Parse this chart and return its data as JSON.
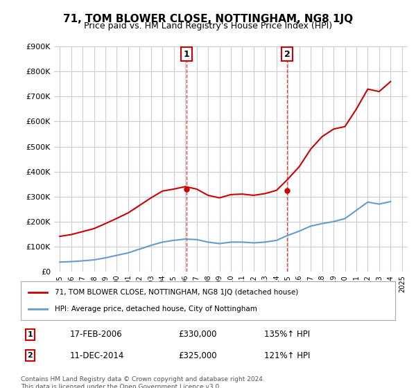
{
  "title": "71, TOM BLOWER CLOSE, NOTTINGHAM, NG8 1JQ",
  "subtitle": "Price paid vs. HM Land Registry's House Price Index (HPI)",
  "sale1": {
    "date": "2006-02-17",
    "price": 330000,
    "label": "1",
    "hpi_pct": "135%↑ HPI",
    "display": "17-FEB-2006",
    "price_str": "£330,000"
  },
  "sale2": {
    "date": "2014-12-11",
    "price": 325000,
    "label": "2",
    "hpi_pct": "121%↑ HPI",
    "display": "11-DEC-2014",
    "price_str": "£325,000"
  },
  "legend_line1": "71, TOM BLOWER CLOSE, NOTTINGHAM, NG8 1JQ (detached house)",
  "legend_line2": "HPI: Average price, detached house, City of Nottingham",
  "footnote": "Contains HM Land Registry data © Crown copyright and database right 2024.\nThis data is licensed under the Open Government Licence v3.0.",
  "red_line_color": "#cc0000",
  "blue_line_color": "#6699cc",
  "dashed_color": "#cc0000",
  "background_color": "#ffffff",
  "grid_color": "#cccccc",
  "ylim": [
    0,
    900000
  ],
  "yticks": [
    0,
    100000,
    200000,
    300000,
    400000,
    500000,
    600000,
    700000,
    800000,
    900000
  ],
  "xlim_start": 1994.5,
  "xlim_end": 2025.5,
  "red_hpi_data": {
    "years": [
      1995,
      1996,
      1997,
      1998,
      1999,
      2000,
      2001,
      2002,
      2003,
      2004,
      2005,
      2006,
      2007,
      2008,
      2009,
      2010,
      2011,
      2012,
      2013,
      2014,
      2015,
      2016,
      2017,
      2018,
      2019,
      2020,
      2021,
      2022,
      2023,
      2024
    ],
    "values": [
      141000,
      148000,
      160000,
      172000,
      192000,
      213000,
      235000,
      265000,
      295000,
      322000,
      330000,
      340000,
      330000,
      305000,
      295000,
      308000,
      310000,
      305000,
      312000,
      325000,
      370000,
      420000,
      490000,
      540000,
      570000,
      580000,
      650000,
      730000,
      720000,
      760000
    ]
  },
  "blue_hpi_data": {
    "years": [
      1995,
      1996,
      1997,
      1998,
      1999,
      2000,
      2001,
      2002,
      2003,
      2004,
      2005,
      2006,
      2007,
      2008,
      2009,
      2010,
      2011,
      2012,
      2013,
      2014,
      2015,
      2016,
      2017,
      2018,
      2019,
      2020,
      2021,
      2022,
      2023,
      2024
    ],
    "values": [
      38000,
      40000,
      43000,
      47000,
      55000,
      65000,
      75000,
      90000,
      105000,
      118000,
      125000,
      130000,
      128000,
      118000,
      112000,
      118000,
      118000,
      115000,
      118000,
      125000,
      145000,
      162000,
      182000,
      192000,
      200000,
      212000,
      245000,
      278000,
      270000,
      280000
    ]
  },
  "sale1_year": 2006.12,
  "sale2_year": 2014.92,
  "sale1_value": 330000,
  "sale2_value": 325000
}
